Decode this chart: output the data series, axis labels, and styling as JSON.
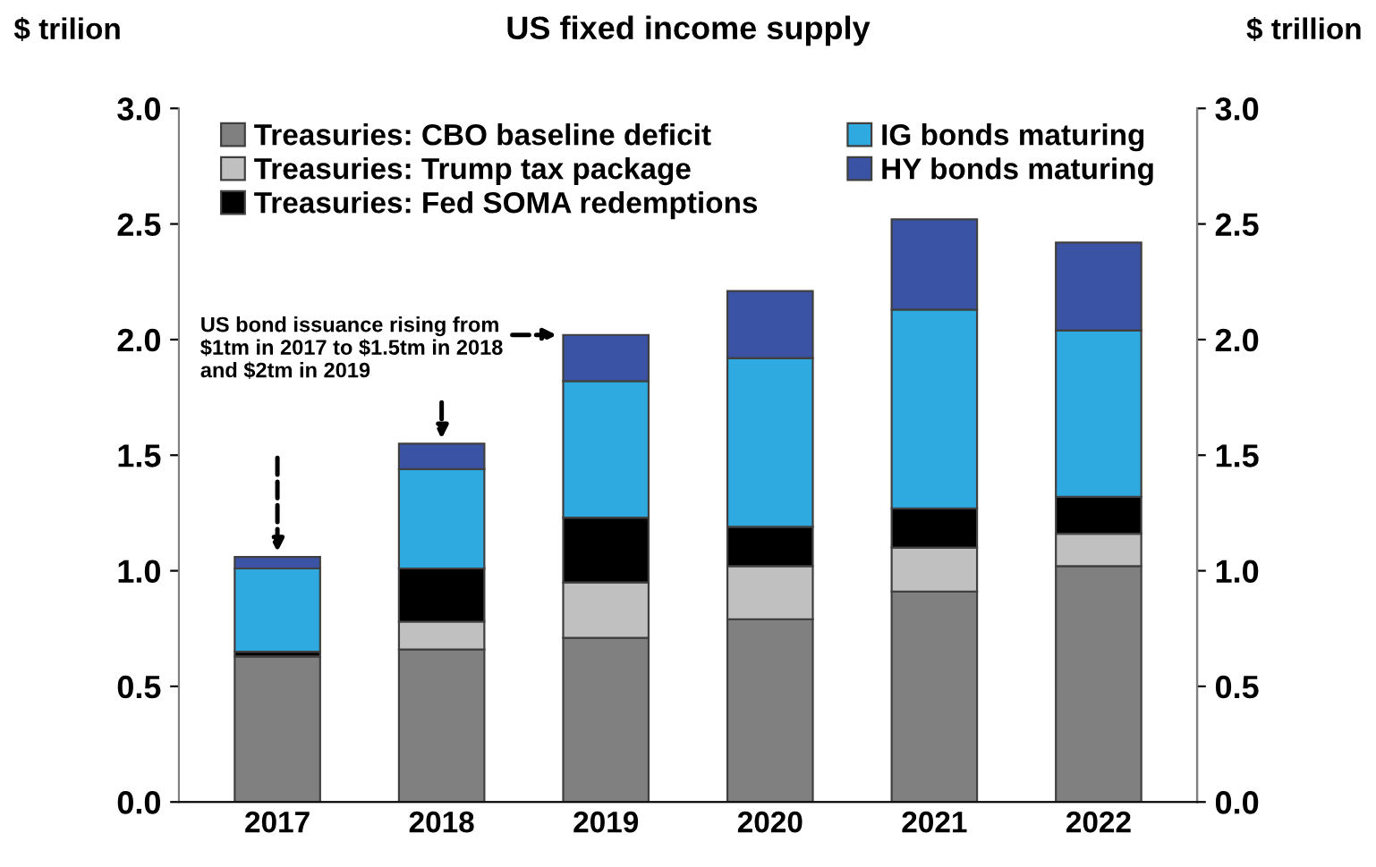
{
  "chart_data": {
    "type": "bar",
    "title": "US fixed income supply",
    "ylabel": "$ trilion",
    "y2label": "$ trillion",
    "categories": [
      "2017",
      "2018",
      "2019",
      "2020",
      "2021",
      "2022"
    ],
    "stacked": true,
    "series": [
      {
        "name": "Treasuries: CBO baseline deficit",
        "color": "#808080",
        "values": [
          0.63,
          0.66,
          0.71,
          0.79,
          0.91,
          1.02
        ]
      },
      {
        "name": "Treasuries: Trump tax package",
        "color": "#c0c0c0",
        "values": [
          0,
          0.12,
          0.24,
          0.23,
          0.19,
          0.14
        ]
      },
      {
        "name": "Treasuries: Fed SOMA redemptions",
        "color": "#000000",
        "values": [
          0.02,
          0.23,
          0.28,
          0.17,
          0.17,
          0.16
        ]
      },
      {
        "name": "IG bonds maturing",
        "color": "#2eaae0",
        "values": [
          0.36,
          0.43,
          0.59,
          0.73,
          0.86,
          0.72
        ]
      },
      {
        "name": "HY bonds maturing",
        "color": "#3a53a4",
        "values": [
          0.05,
          0.11,
          0.2,
          0.29,
          0.39,
          0.38
        ]
      }
    ],
    "ylim": [
      0,
      3.0
    ],
    "yticks": [
      {
        "value": 0,
        "label": "0.0"
      },
      {
        "value": 0.5,
        "label": "0.5"
      },
      {
        "value": 1.0,
        "label": "1.0"
      },
      {
        "value": 1.5,
        "label": "1.5"
      },
      {
        "value": 2.0,
        "label": "2.0"
      },
      {
        "value": 2.5,
        "label": "2.5"
      },
      {
        "value": 3.0,
        "label": "3.0"
      }
    ],
    "y2lim": [
      0,
      3.0
    ],
    "y2ticks": [
      {
        "value": 0,
        "label": "0.0"
      },
      {
        "value": 0.5,
        "label": "0.5"
      },
      {
        "value": 1.0,
        "label": "1.0"
      },
      {
        "value": 1.5,
        "label": "1.5"
      },
      {
        "value": 2.0,
        "label": "2.0"
      },
      {
        "value": 2.5,
        "label": "2.5"
      },
      {
        "value": 3.0,
        "label": "3.0"
      }
    ],
    "annotations": [
      "US bond issuance rising from\n$1tm in 2017 to $1.5tm in 2018\nand $2tm in 2019"
    ],
    "grid": false,
    "legend": "top"
  }
}
